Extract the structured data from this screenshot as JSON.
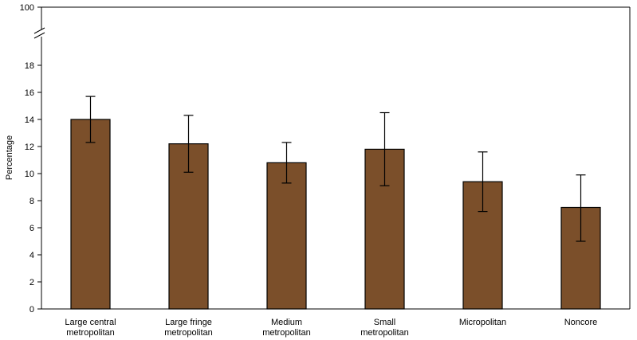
{
  "chart_data": {
    "type": "bar",
    "title": "",
    "xlabel": "",
    "ylabel": "Percentage",
    "ylim": [
      0,
      20
    ],
    "y_break": true,
    "y_break_top_label": "100",
    "yticks": [
      0,
      2,
      4,
      6,
      8,
      10,
      12,
      14,
      16,
      18
    ],
    "categories": [
      [
        "Large central",
        "metropolitan"
      ],
      [
        "Large fringe",
        "metropolitan"
      ],
      [
        "Medium",
        "metropolitan"
      ],
      [
        "Small",
        "metropolitan"
      ],
      [
        "Micropolitan"
      ],
      [
        "Noncore"
      ]
    ],
    "values": [
      14.0,
      12.2,
      10.8,
      11.8,
      9.4,
      7.5
    ],
    "error_low": [
      12.3,
      10.1,
      9.3,
      9.1,
      7.2,
      5.0
    ],
    "error_high": [
      15.7,
      14.3,
      12.3,
      14.5,
      11.6,
      9.9
    ],
    "bar_color": "#7B4F2A"
  }
}
